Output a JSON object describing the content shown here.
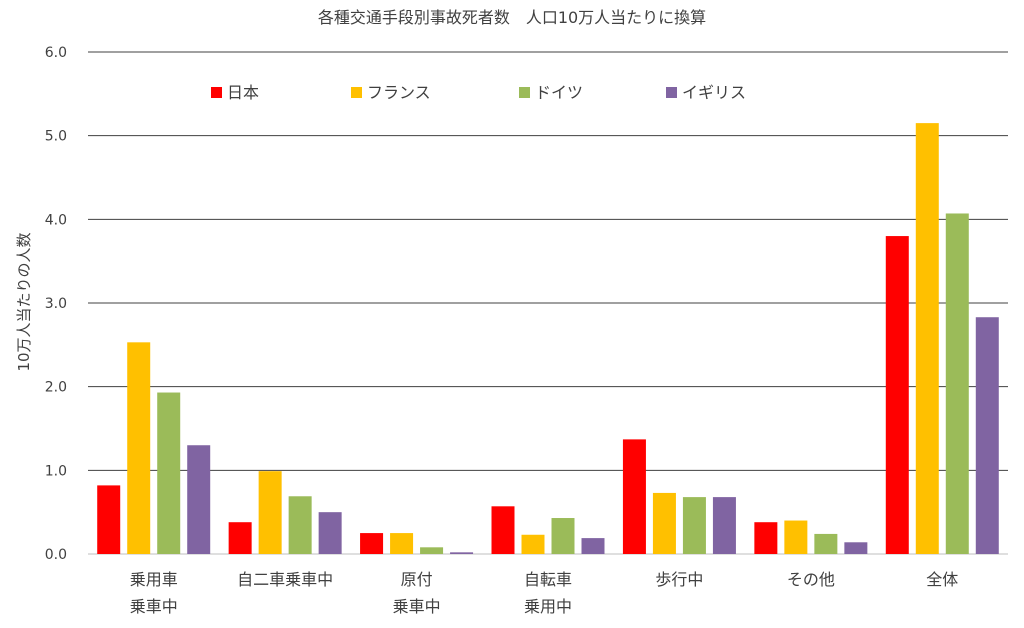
{
  "chart_data": {
    "type": "bar",
    "title": "各種交通手段別事故死者数　人口10万人当たりに換算",
    "ylabel": "10万人当たりの人数",
    "xlabel": "",
    "ylim": [
      0,
      6
    ],
    "yticks": [
      "0.0",
      "1.0",
      "2.0",
      "3.0",
      "4.0",
      "5.0",
      "6.0"
    ],
    "grid": true,
    "legend_position": "top",
    "categories": [
      [
        "乗用車",
        "乗車中"
      ],
      [
        "自二車乗車中"
      ],
      [
        "原付",
        "乗車中"
      ],
      [
        "自転車",
        "乗用中"
      ],
      [
        "歩行中"
      ],
      [
        "その他"
      ],
      [
        "全体"
      ]
    ],
    "series": [
      {
        "name": "日本",
        "color": "#FF0000",
        "values": [
          0.82,
          0.38,
          0.25,
          0.57,
          1.37,
          0.38,
          3.8
        ]
      },
      {
        "name": "フランス",
        "color": "#FFC000",
        "values": [
          2.53,
          0.99,
          0.25,
          0.23,
          0.73,
          0.4,
          5.15
        ]
      },
      {
        "name": "ドイツ",
        "color": "#9BBB59",
        "values": [
          1.93,
          0.69,
          0.08,
          0.43,
          0.68,
          0.24,
          4.07
        ]
      },
      {
        "name": "イギリス",
        "color": "#8064A2",
        "values": [
          1.3,
          0.5,
          0.02,
          0.19,
          0.68,
          0.14,
          2.83
        ]
      }
    ]
  }
}
